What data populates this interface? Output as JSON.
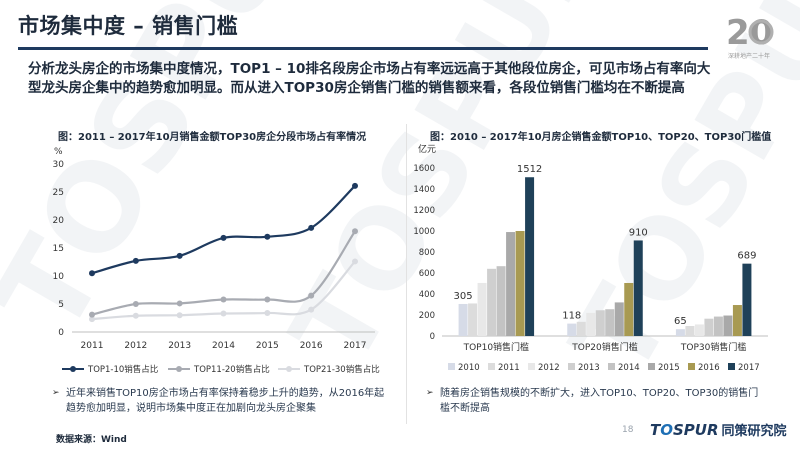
{
  "header": {
    "title": "市场集中度 – 销售门槛",
    "logo_number": "20",
    "logo_sub": "深耕地产二十年"
  },
  "intro_text": "分析龙头房企的市场集中度情况，TOP1 – 10排名段房企市场占有率远远高于其他段位房企，可见市场占有率向大型龙头房企集中的趋势愈加明显。而从进入TOP30房企销售门槛的销售额来看，各段位销售门槛均在不断提高",
  "watermark": {
    "text_left": "TOSPUR",
    "text_cn": "同策研究院"
  },
  "left_chart": {
    "caption": "图：2011 – 2017年10月销售金额TOP30房企分段市场占有率情况",
    "bullet": "近年来销售TOP10房企市场占有率保持着稳步上升的趋势，从2016年起趋势愈加明显，说明市场集中度正在加剧向龙头房企聚集"
  },
  "right_chart": {
    "caption": "图：2010 – 2017年10月房企销售金额TOP10、TOP20、TOP30门槛值",
    "bullet": "随着房企销售规模的不断扩大，进入TOP10、TOP20、TOP30的销售门槛不断提高"
  },
  "chart_data": [
    {
      "type": "line",
      "title": "2011 – 2017年10月销售金额TOP30房企分段市场占有率情况",
      "ylabel": "%",
      "x": [
        "2011",
        "2012",
        "2013",
        "2014",
        "2015",
        "2016",
        "2017"
      ],
      "ylim": [
        0,
        30
      ],
      "yticks": [
        0,
        5,
        10,
        15,
        20,
        25,
        30
      ],
      "grid": false,
      "legend": "bottom",
      "series": [
        {
          "name": "TOP1-10销售占比",
          "color": "#1e3a5f",
          "values": [
            10.5,
            12.7,
            13.6,
            16.8,
            17.0,
            18.6,
            26.1
          ]
        },
        {
          "name": "TOP11-20销售占比",
          "color": "#a8abb2",
          "values": [
            3.1,
            5.0,
            5.1,
            5.8,
            5.8,
            6.5,
            18.0
          ]
        },
        {
          "name": "TOP21-30销售占比",
          "color": "#d9dbe0",
          "values": [
            2.3,
            2.9,
            3.0,
            3.3,
            3.4,
            4.0,
            12.6
          ]
        }
      ]
    },
    {
      "type": "bar",
      "title": "2010 – 2017年10月房企销售金额TOP10、TOP20、TOP30门槛值",
      "ylabel": "亿元",
      "categories": [
        "TOP10销售门槛",
        "TOP20销售门槛",
        "TOP30销售门槛"
      ],
      "ylim": [
        0,
        1600
      ],
      "yticks": [
        0,
        200,
        400,
        600,
        800,
        1000,
        1200,
        1400,
        1600
      ],
      "legend": "bottom",
      "series": [
        {
          "name": "2010",
          "color": "#d6dbe7",
          "values": [
            305,
            118,
            65
          ]
        },
        {
          "name": "2011",
          "color": "#dcdcdc",
          "values": [
            310,
            135,
            95
          ]
        },
        {
          "name": "2012",
          "color": "#e8e8e8",
          "values": [
            505,
            220,
            110
          ]
        },
        {
          "name": "2013",
          "color": "#cfcfcf",
          "values": [
            640,
            245,
            165
          ]
        },
        {
          "name": "2014",
          "color": "#c3c3c3",
          "values": [
            665,
            255,
            185
          ]
        },
        {
          "name": "2015",
          "color": "#a9a9a9",
          "values": [
            990,
            320,
            195
          ]
        },
        {
          "name": "2016",
          "color": "#a89a52",
          "values": [
            1000,
            505,
            295
          ]
        },
        {
          "name": "2017",
          "color": "#1f4159",
          "values": [
            1512,
            910,
            689
          ]
        }
      ],
      "data_labels": [
        {
          "category": 0,
          "series": "2010",
          "text": "305"
        },
        {
          "category": 0,
          "series": "2017",
          "text": "1512"
        },
        {
          "category": 1,
          "series": "2010",
          "text": "118"
        },
        {
          "category": 1,
          "series": "2017",
          "text": "910"
        },
        {
          "category": 2,
          "series": "2010",
          "text": "65"
        },
        {
          "category": 2,
          "series": "2017",
          "text": "689"
        }
      ]
    }
  ],
  "footer": {
    "source": "数据来源：Wind",
    "page_number": "18",
    "brand_latin_1": "T",
    "brand_latin_o": "O",
    "brand_latin_2": "SPUR",
    "brand_cn": "同策研究院"
  }
}
